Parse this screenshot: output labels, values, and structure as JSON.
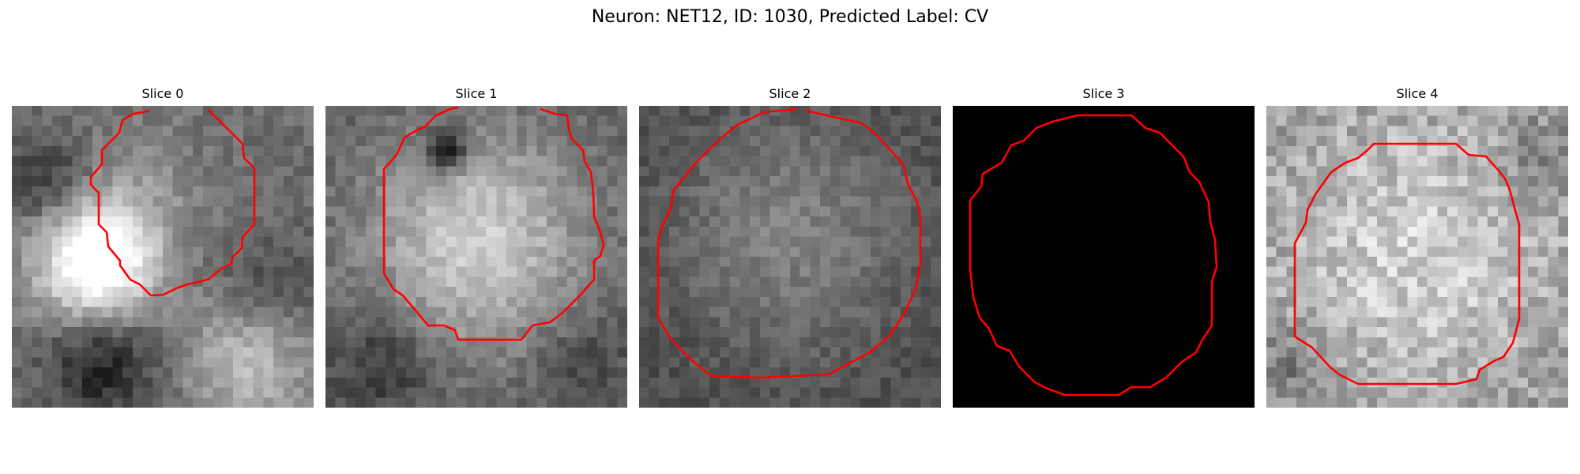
{
  "figure": {
    "title": "Neuron: NET12, ID: 1030, Predicted Label: CV"
  },
  "panels": [
    {
      "title": "Slice 0",
      "image": "grayscale-microscopy-patch",
      "contour_color": "#ff0000"
    },
    {
      "title": "Slice 1",
      "image": "grayscale-microscopy-patch",
      "contour_color": "#ff0000"
    },
    {
      "title": "Slice 2",
      "image": "grayscale-microscopy-patch",
      "contour_color": "#ff0000"
    },
    {
      "title": "Slice 3",
      "image": "black-patch",
      "contour_color": "#ff0000"
    },
    {
      "title": "Slice 4",
      "image": "grayscale-microscopy-patch",
      "contour_color": "#ff0000"
    }
  ]
}
